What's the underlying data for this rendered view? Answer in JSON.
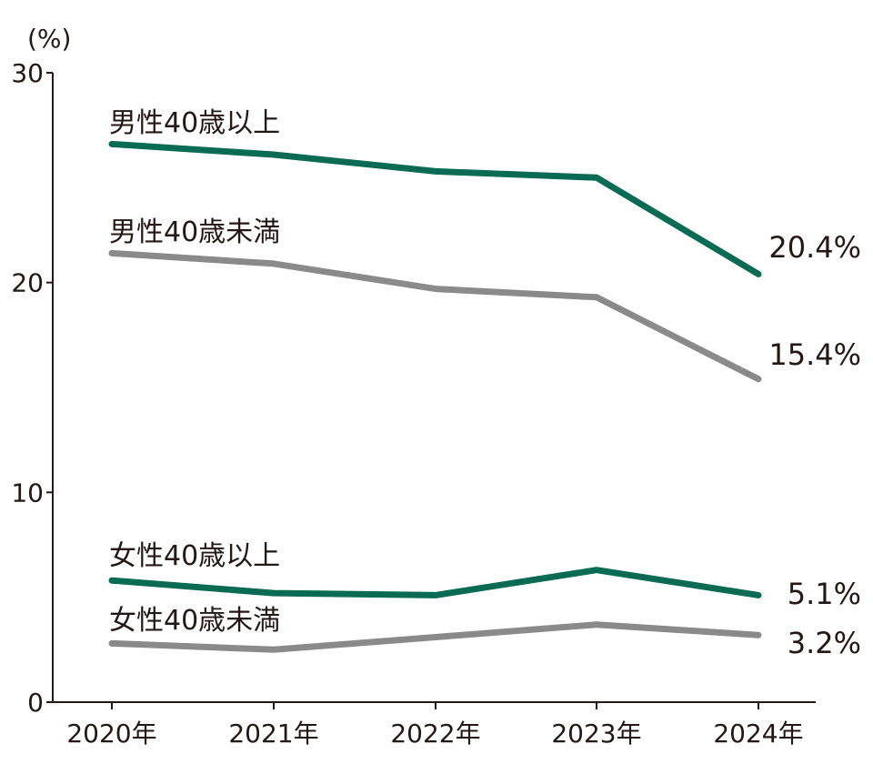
{
  "chart_data": {
    "type": "line",
    "title": "",
    "xlabel": "",
    "ylabel": "",
    "y_unit": "(%)",
    "ylim": [
      0,
      30
    ],
    "yticks": [
      "0",
      "10",
      "20",
      "30"
    ],
    "categories": [
      "2020年",
      "2021年",
      "2022年",
      "2023年",
      "2024年"
    ],
    "grid": false,
    "legend": "inline labels",
    "series": [
      {
        "name": "男性40歳以上",
        "color": "#0a6b55",
        "values": [
          26.6,
          26.1,
          25.3,
          25.0,
          20.4
        ],
        "end_label": "20.4%"
      },
      {
        "name": "男性40歳未満",
        "color": "#8a8a8a",
        "values": [
          21.4,
          20.9,
          19.7,
          19.3,
          15.4
        ],
        "end_label": "15.4%"
      },
      {
        "name": "女性40歳以上",
        "color": "#0a6b55",
        "values": [
          5.8,
          5.2,
          5.1,
          6.3,
          5.1
        ],
        "end_label": "5.1%"
      },
      {
        "name": "女性40歳未満",
        "color": "#8a8a8a",
        "values": [
          2.8,
          2.5,
          3.1,
          3.7,
          3.2
        ],
        "end_label": "3.2%"
      }
    ]
  }
}
